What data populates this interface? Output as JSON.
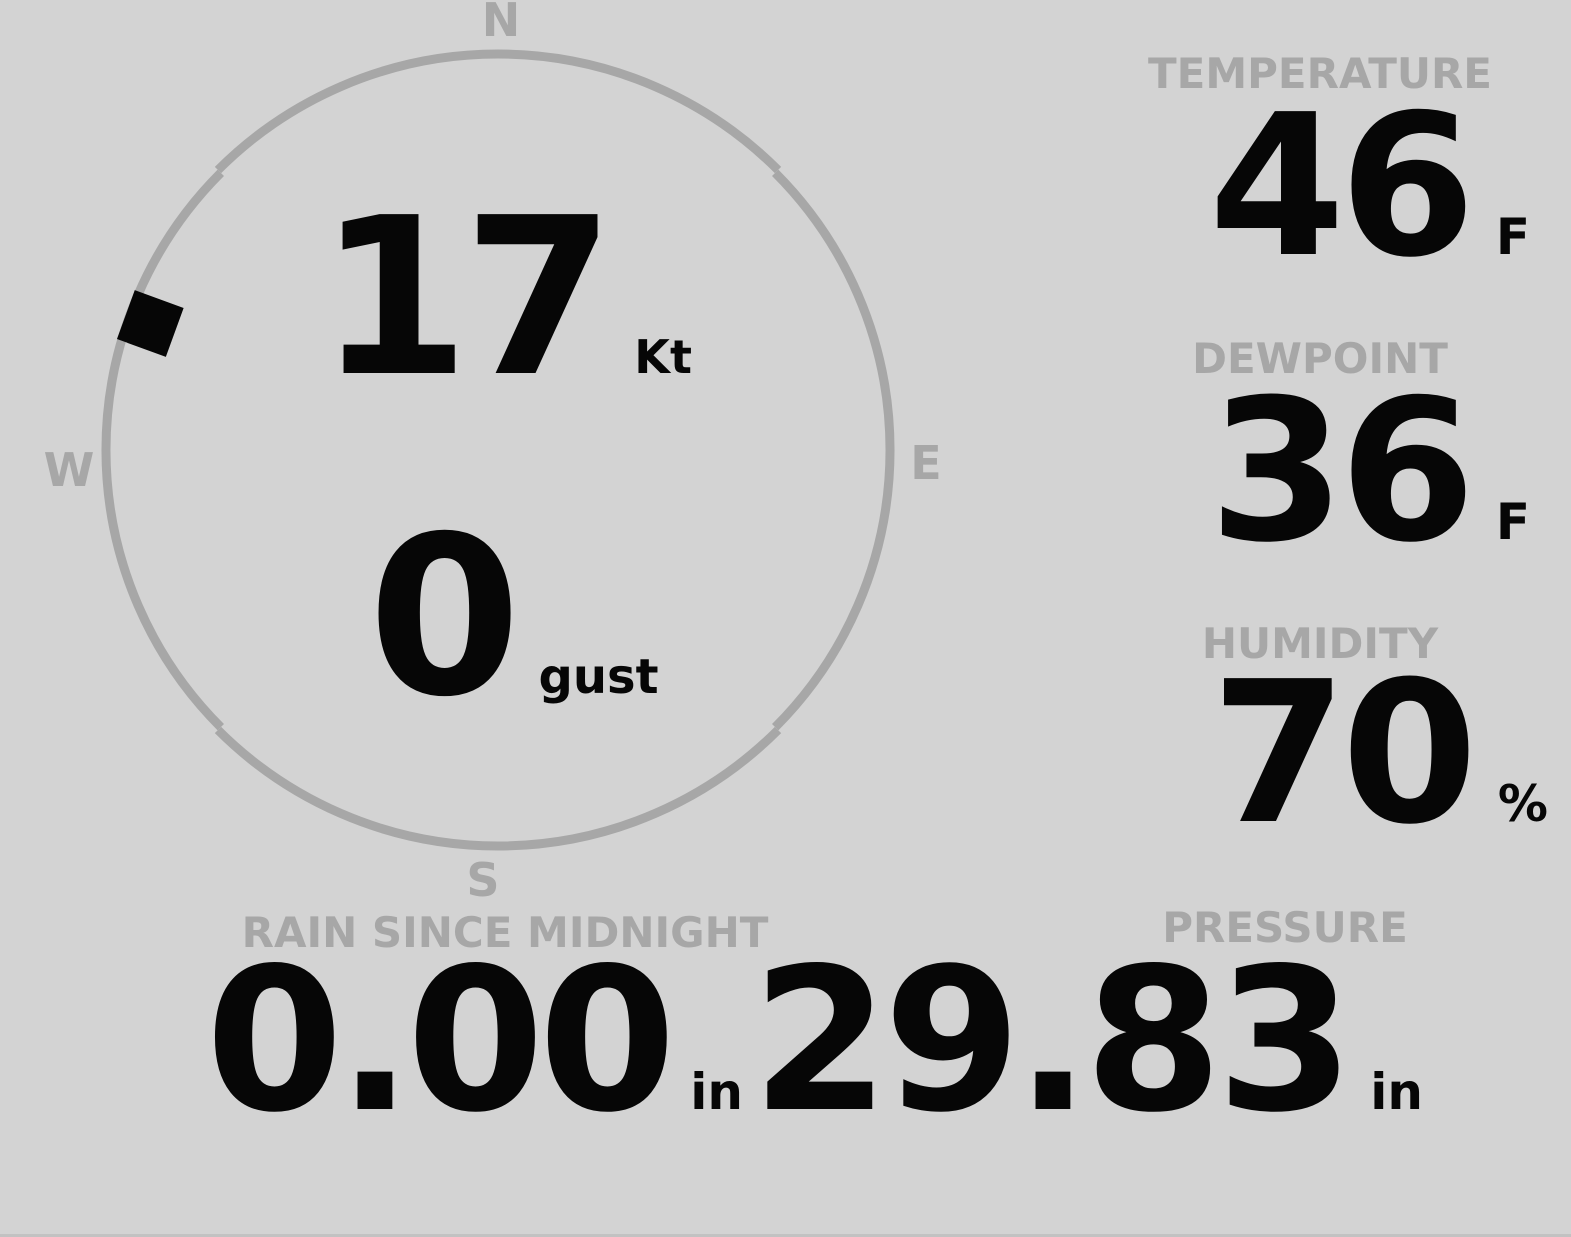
{
  "theme": {
    "background": "#d3d3d3",
    "muted_gray": "#a7a7a7",
    "ink": "#060606"
  },
  "wind": {
    "speed": "17",
    "speed_unit": "Kt",
    "gust": "0",
    "gust_unit": "gust",
    "direction_degrees": 290,
    "compass": {
      "north": "N",
      "east": "E",
      "south": "S",
      "west": "W"
    }
  },
  "metrics": {
    "temperature": {
      "label": "TEMPERATURE",
      "value": "46",
      "unit": "F"
    },
    "dewpoint": {
      "label": "DEWPOINT",
      "value": "36",
      "unit": "F"
    },
    "humidity": {
      "label": "HUMIDITY",
      "value": "70",
      "unit": "%"
    },
    "rain": {
      "label": "RAIN SINCE MIDNIGHT",
      "value": "0.00",
      "unit": "in"
    },
    "pressure": {
      "label": "PRESSURE",
      "value": "29.83",
      "unit": "in"
    }
  }
}
